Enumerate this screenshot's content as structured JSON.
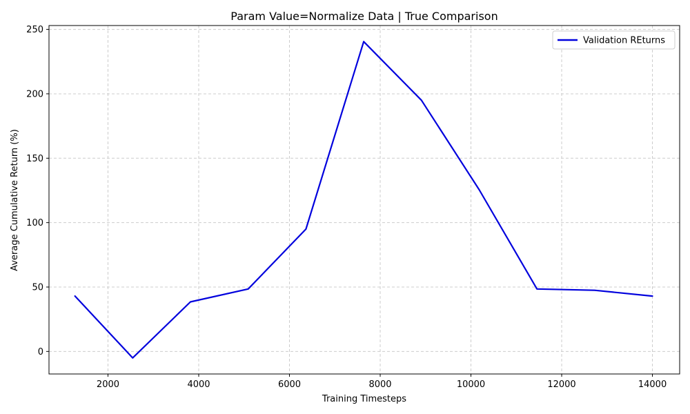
{
  "chart_data": {
    "type": "line",
    "title": "Param Value=Normalize Data | True Comparison",
    "xlabel": "Training Timesteps",
    "ylabel": "Average Cumulative Return (%)",
    "xlim": [
      700,
      14600
    ],
    "ylim": [
      -17.5,
      253
    ],
    "xticks": [
      2000,
      4000,
      6000,
      8000,
      10000,
      12000,
      14000
    ],
    "yticks": [
      0,
      50,
      100,
      150,
      200,
      250
    ],
    "grid": true,
    "legend_position": "top-right",
    "series": [
      {
        "name": "Validation REturns",
        "color": "#0000dd",
        "x": [
          1273,
          2545,
          3818,
          5091,
          6364,
          7636,
          8909,
          10182,
          11455,
          12727,
          14000
        ],
        "y": [
          43,
          -5,
          38.5,
          48.5,
          95,
          240.5,
          195,
          125.5,
          48.5,
          47.5,
          43
        ]
      }
    ]
  }
}
